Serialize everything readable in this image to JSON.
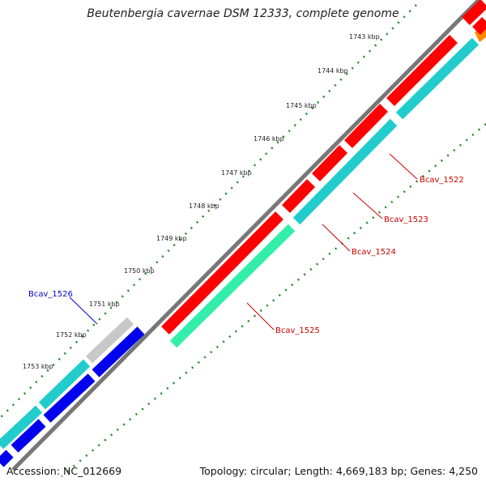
{
  "title": "Beutenbergia cavernae DSM 12333, complete genome",
  "accession": "Accession: NC_012669",
  "summary": "Topology: circular; Length: 4,669,183 bp; Genes: 4,250",
  "ticks": [
    "1743 kbp",
    "1744 kbp",
    "1745 kbp",
    "1746 kbp",
    "1747 kbp",
    "1748 kbp",
    "1749 kbp",
    "1750 kbp",
    "1751 kbp",
    "1752 kbp",
    "1753 kbp"
  ],
  "genes": [
    {
      "name": "Bcav_1522",
      "color": "#cc0000"
    },
    {
      "name": "Bcav_1523",
      "color": "#cc0000"
    },
    {
      "name": "Bcav_1524",
      "color": "#cc0000"
    },
    {
      "name": "Bcav_1525",
      "color": "#cc0000"
    },
    {
      "name": "Bcav_1526",
      "color": "#0000cc"
    }
  ],
  "colors": {
    "forward_cds": "#ff0000",
    "reverse_cds": "#0000ee",
    "teal_track": "#22cccc",
    "green_track": "#33eeaa",
    "grey_track": "#c8c8c8",
    "orange": "#ff8800",
    "backbone": "#777777",
    "tick_dots": "#228822"
  }
}
